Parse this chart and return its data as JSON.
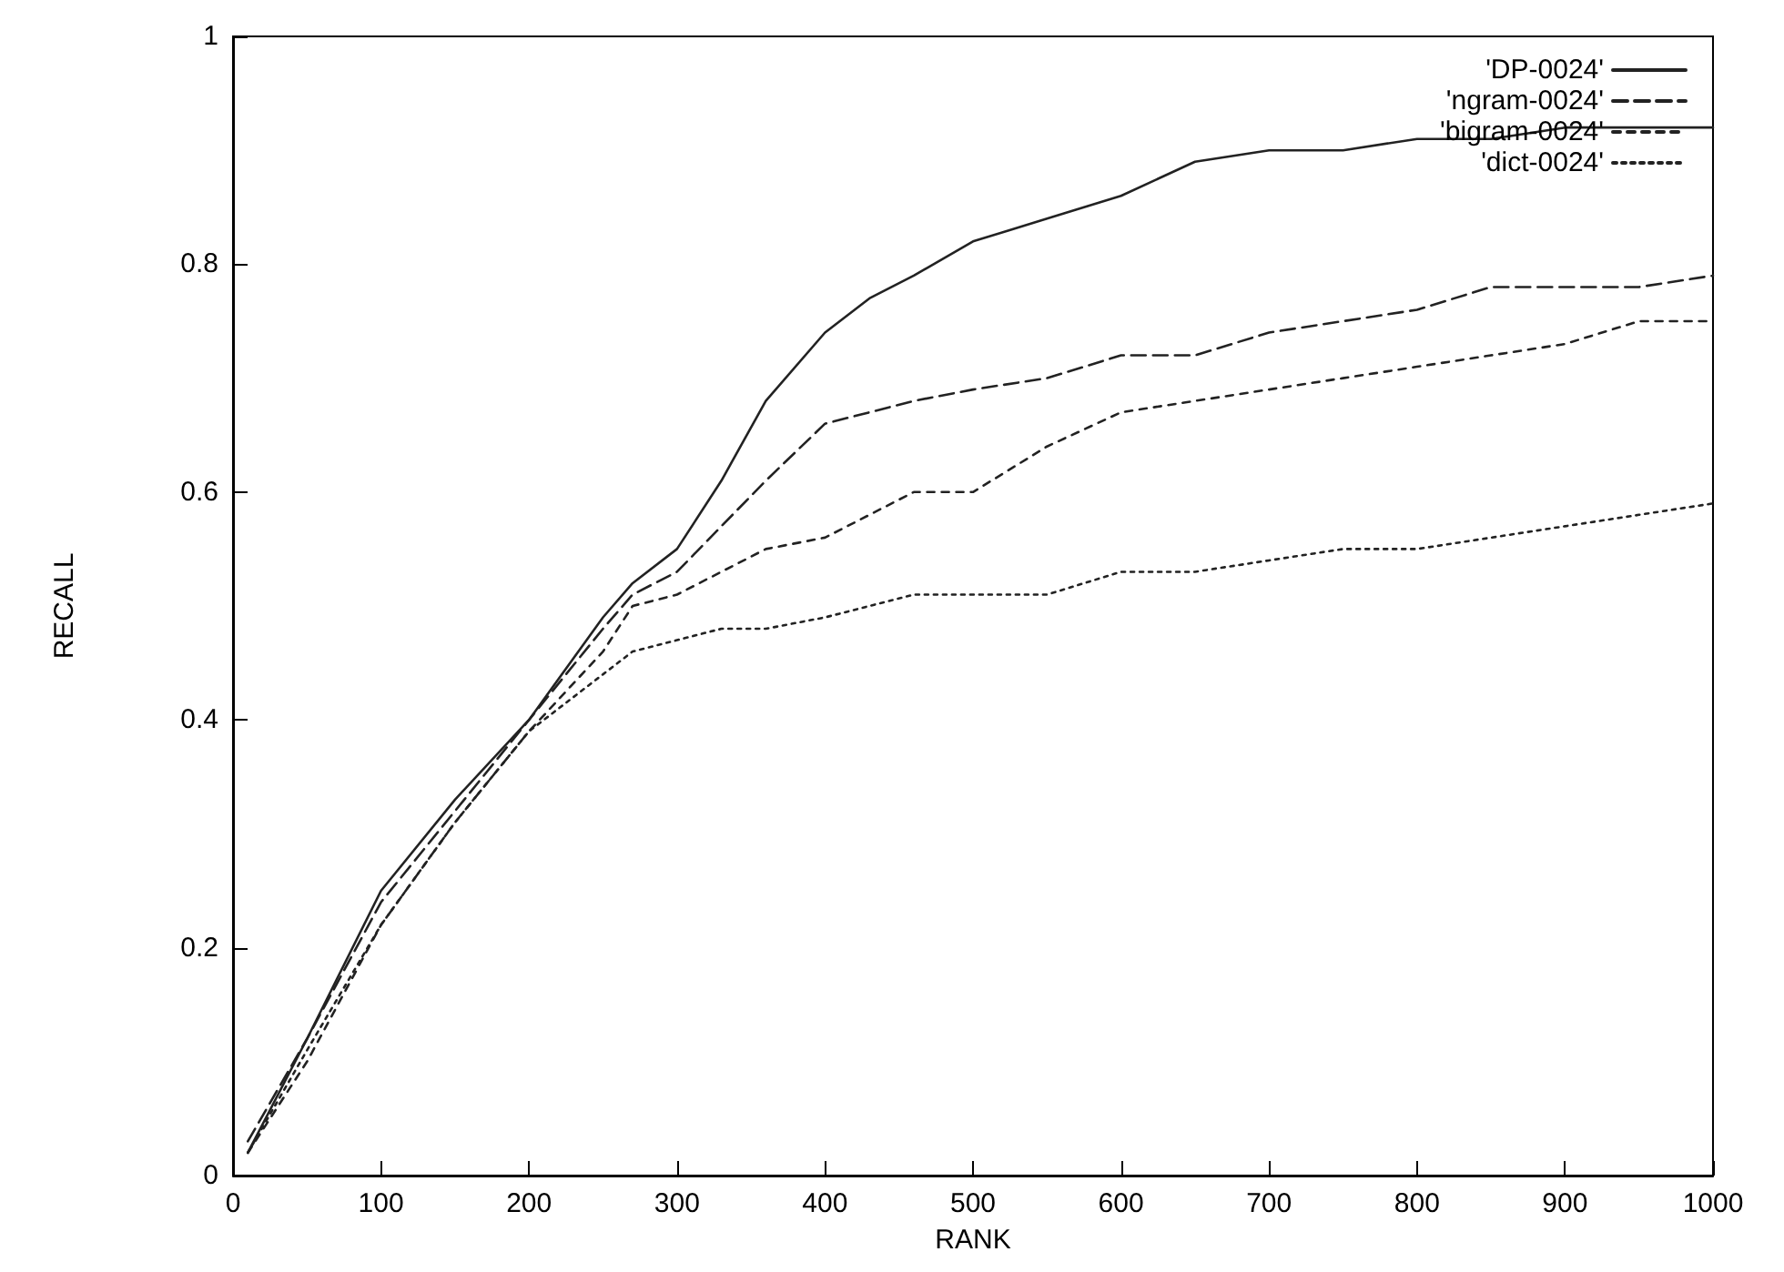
{
  "chart_data": {
    "type": "line",
    "xlabel": "RANK",
    "ylabel": "RECALL",
    "xlim": [
      0,
      1000
    ],
    "xticks": [
      0,
      100,
      200,
      300,
      400,
      500,
      600,
      700,
      800,
      900,
      1000
    ],
    "ylim": [
      0,
      1
    ],
    "yticks": [
      0,
      0.2,
      0.4,
      0.6,
      0.8,
      1
    ],
    "grid": false,
    "legend": "top right",
    "marker": "none",
    "x": [
      10,
      50,
      100,
      150,
      200,
      250,
      270,
      300,
      330,
      360,
      400,
      430,
      460,
      500,
      550,
      600,
      650,
      700,
      750,
      800,
      850,
      900,
      950,
      1000
    ],
    "series": [
      {
        "name": "'DP-0024'",
        "color": "#222222",
        "line_style": "solid",
        "values": [
          0.02,
          0.12,
          0.25,
          0.33,
          0.4,
          0.49,
          0.52,
          0.55,
          0.61,
          0.68,
          0.74,
          0.77,
          0.79,
          0.82,
          0.84,
          0.86,
          0.89,
          0.9,
          0.9,
          0.91,
          0.91,
          0.92,
          0.92,
          0.92
        ]
      },
      {
        "name": "'ngram-0024'",
        "color": "#222222",
        "line_style": "dashed",
        "values": [
          0.03,
          0.12,
          0.24,
          0.32,
          0.4,
          0.48,
          0.51,
          0.53,
          0.57,
          0.61,
          0.66,
          0.67,
          0.68,
          0.69,
          0.7,
          0.72,
          0.72,
          0.74,
          0.75,
          0.76,
          0.78,
          0.78,
          0.78,
          0.79
        ]
      },
      {
        "name": "'bigram-0024'",
        "color": "#222222",
        "line_style": "dashed",
        "values": [
          0.02,
          0.1,
          0.22,
          0.31,
          0.39,
          0.46,
          0.5,
          0.51,
          0.53,
          0.55,
          0.56,
          0.58,
          0.6,
          0.6,
          0.64,
          0.67,
          0.68,
          0.69,
          0.7,
          0.71,
          0.72,
          0.73,
          0.75,
          0.75
        ]
      },
      {
        "name": "'dict-0024'",
        "color": "#222222",
        "line_style": "dotted",
        "values": [
          0.02,
          0.11,
          0.22,
          0.31,
          0.39,
          0.44,
          0.46,
          0.47,
          0.48,
          0.48,
          0.49,
          0.5,
          0.51,
          0.51,
          0.51,
          0.53,
          0.53,
          0.54,
          0.55,
          0.55,
          0.56,
          0.57,
          0.58,
          0.59
        ]
      }
    ]
  }
}
